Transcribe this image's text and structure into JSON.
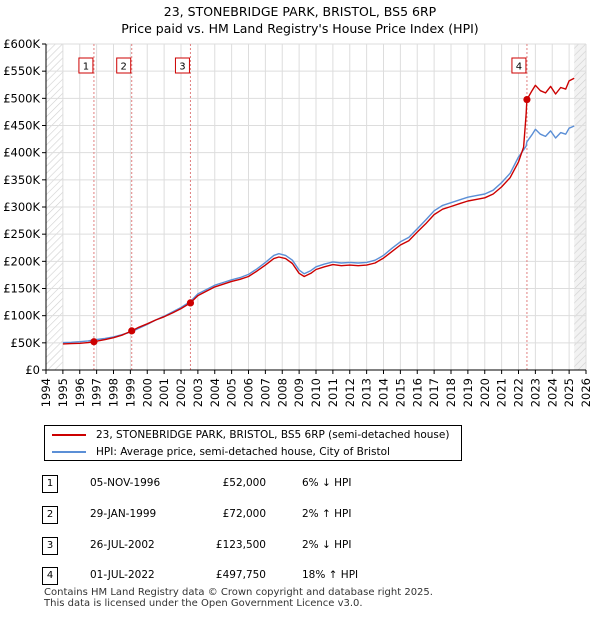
{
  "title_line1": "23, STONEBRIDGE PARK, BRISTOL, BS5 6RP",
  "title_line2": "Price paid vs. HM Land Registry's House Price Index (HPI)",
  "chart_data": {
    "type": "line",
    "ylim": [
      0,
      600000
    ],
    "xlim": [
      1994,
      2026
    ],
    "y_ticks": [
      {
        "value": 0,
        "label": "£0"
      },
      {
        "value": 50000,
        "label": "£50K"
      },
      {
        "value": 100000,
        "label": "£100K"
      },
      {
        "value": 150000,
        "label": "£150K"
      },
      {
        "value": 200000,
        "label": "£200K"
      },
      {
        "value": 250000,
        "label": "£250K"
      },
      {
        "value": 300000,
        "label": "£300K"
      },
      {
        "value": 350000,
        "label": "£350K"
      },
      {
        "value": 400000,
        "label": "£400K"
      },
      {
        "value": 450000,
        "label": "£450K"
      },
      {
        "value": 500000,
        "label": "£500K"
      },
      {
        "value": 550000,
        "label": "£550K"
      },
      {
        "value": 600000,
        "label": "£600K"
      }
    ],
    "x_ticks": [
      1994,
      1995,
      1996,
      1997,
      1998,
      1999,
      2000,
      2001,
      2002,
      2003,
      2004,
      2005,
      2006,
      2007,
      2008,
      2009,
      2010,
      2011,
      2012,
      2013,
      2014,
      2015,
      2016,
      2017,
      2018,
      2019,
      2020,
      2021,
      2022,
      2023,
      2024,
      2025,
      2026
    ],
    "grid": true,
    "data_range": [
      1995.0,
      2025.3
    ],
    "series": [
      {
        "name": "23, STONEBRIDGE PARK, BRISTOL, BS5 6RP (semi-detached house)",
        "color": "#cc0000",
        "x": [
          1995.0,
          1995.5,
          1996.0,
          1996.5,
          1996.84,
          1997.5,
          1998.0,
          1998.5,
          1999.08,
          1999.5,
          2000.0,
          2000.5,
          2001.0,
          2001.5,
          2002.0,
          2002.56,
          2003.0,
          2003.5,
          2004.0,
          2004.5,
          2005.0,
          2005.5,
          2006.0,
          2006.5,
          2007.0,
          2007.5,
          2007.8,
          2008.2,
          2008.6,
          2009.0,
          2009.3,
          2009.7,
          2010.0,
          2010.5,
          2011.0,
          2011.5,
          2012.0,
          2012.5,
          2013.0,
          2013.5,
          2014.0,
          2014.5,
          2015.0,
          2015.5,
          2016.0,
          2016.5,
          2017.0,
          2017.5,
          2018.0,
          2018.5,
          2019.0,
          2019.5,
          2020.0,
          2020.5,
          2021.0,
          2021.5,
          2022.0,
          2022.3,
          2022.45,
          2022.5,
          2022.8,
          2023.0,
          2023.3,
          2023.6,
          2023.9,
          2024.2,
          2024.5,
          2024.8,
          2025.0,
          2025.3
        ],
        "values": [
          48000,
          48500,
          49200,
          50500,
          52000,
          56000,
          59500,
          64000,
          72000,
          78500,
          85000,
          92000,
          98000,
          105000,
          113000,
          123500,
          137000,
          145000,
          153000,
          158000,
          163000,
          167000,
          172000,
          182000,
          193000,
          205000,
          208000,
          205000,
          196000,
          178000,
          172000,
          178000,
          185000,
          190000,
          194000,
          192000,
          193000,
          192000,
          193000,
          197000,
          206000,
          218000,
          230000,
          238000,
          254000,
          269000,
          286000,
          296000,
          301000,
          306000,
          311000,
          314000,
          317000,
          324000,
          337000,
          354000,
          383000,
          410000,
          470000,
          497750,
          514000,
          524000,
          514000,
          510000,
          522000,
          508000,
          520000,
          517000,
          532000,
          537000
        ]
      },
      {
        "name": "HPI: Average price, semi-detached house, City of Bristol",
        "color": "#5b8fd6",
        "x": [
          1995.0,
          1995.5,
          1996.0,
          1996.5,
          1996.84,
          1997.5,
          1998.0,
          1998.5,
          1999.08,
          1999.5,
          2000.0,
          2000.5,
          2001.0,
          2001.5,
          2002.0,
          2002.56,
          2003.0,
          2003.5,
          2004.0,
          2004.5,
          2005.0,
          2005.5,
          2006.0,
          2006.5,
          2007.0,
          2007.5,
          2007.8,
          2008.2,
          2008.6,
          2009.0,
          2009.3,
          2009.7,
          2010.0,
          2010.5,
          2011.0,
          2011.5,
          2012.0,
          2012.5,
          2013.0,
          2013.5,
          2014.0,
          2014.5,
          2015.0,
          2015.5,
          2016.0,
          2016.5,
          2017.0,
          2017.5,
          2018.0,
          2018.5,
          2019.0,
          2019.5,
          2020.0,
          2020.5,
          2021.0,
          2021.5,
          2022.0,
          2022.3,
          2022.45,
          2022.5,
          2022.8,
          2023.0,
          2023.3,
          2023.6,
          2023.9,
          2024.2,
          2024.5,
          2024.8,
          2025.0,
          2025.3
        ],
        "values": [
          50500,
          51000,
          52000,
          53500,
          55500,
          58000,
          61000,
          65000,
          70500,
          77000,
          84000,
          92000,
          99000,
          107000,
          115000,
          126000,
          140000,
          148000,
          156000,
          161000,
          166000,
          170000,
          176000,
          186000,
          198000,
          211000,
          214000,
          211000,
          202000,
          184000,
          177000,
          183000,
          190000,
          195000,
          199000,
          197000,
          198000,
          197000,
          198000,
          202000,
          211000,
          224000,
          236000,
          244000,
          260000,
          276000,
          293000,
          303000,
          308000,
          313000,
          318000,
          321000,
          324000,
          331000,
          345000,
          362000,
          392000,
          405000,
          412000,
          420000,
          433000,
          443000,
          434000,
          430000,
          440000,
          427000,
          437000,
          434000,
          445000,
          449000
        ]
      }
    ],
    "sales": [
      {
        "label": "1",
        "year": 1996.84,
        "price": 52000
      },
      {
        "label": "2",
        "year": 1999.08,
        "price": 72000
      },
      {
        "label": "3",
        "year": 2002.56,
        "price": 123500
      },
      {
        "label": "4",
        "year": 2022.5,
        "price": 497750
      }
    ]
  },
  "legend": [
    {
      "label": "23, STONEBRIDGE PARK, BRISTOL, BS5 6RP (semi-detached house)",
      "color": "#cc0000"
    },
    {
      "label": "HPI: Average price, semi-detached house, City of Bristol",
      "color": "#5b8fd6"
    }
  ],
  "transactions": [
    {
      "num": "1",
      "date": "05-NOV-1996",
      "price": "£52,000",
      "hpi": "6% ↓ HPI"
    },
    {
      "num": "2",
      "date": "29-JAN-1999",
      "price": "£72,000",
      "hpi": "2% ↑ HPI"
    },
    {
      "num": "3",
      "date": "26-JUL-2002",
      "price": "£123,500",
      "hpi": "2% ↓ HPI"
    },
    {
      "num": "4",
      "date": "01-JUL-2022",
      "price": "£497,750",
      "hpi": "18% ↑ HPI"
    }
  ],
  "footer_line1": "Contains HM Land Registry data © Crown copyright and database right 2025.",
  "footer_line2": "This data is licensed under the Open Government Licence v3.0."
}
